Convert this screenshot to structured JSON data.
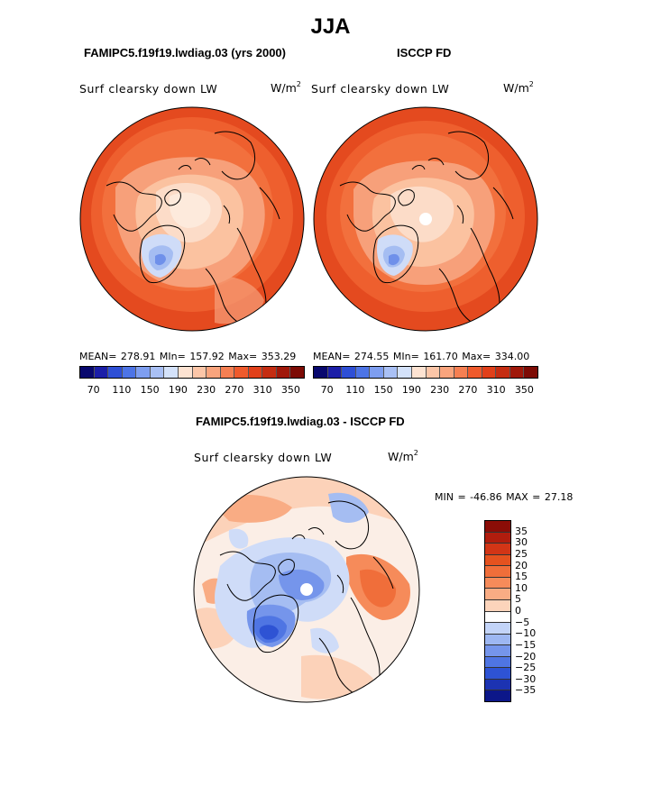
{
  "title": "JJA",
  "panel_left": {
    "title": "FAMIPC5.f19f19.lwdiag.03 (yrs 2000)",
    "variable": "Surf clearsky down LW",
    "units": "W/m",
    "units_exp": "2",
    "stats": "MEAN= 278.91   MIn= 157.92   Max= 353.29"
  },
  "panel_right": {
    "title": "ISCCP FD",
    "variable": "Surf clearsky down LW",
    "units": "W/m",
    "units_exp": "2",
    "stats": "MEAN= 274.55   MIn= 161.70   Max= 334.00"
  },
  "panel_diff": {
    "title": "FAMIPC5.f19f19.lwdiag.03 - ISCCP FD",
    "variable": "Surf clearsky down LW",
    "units": "W/m",
    "units_exp": "2",
    "minmax": "MIN = -46.86 MAX =   27.18"
  },
  "abs_colorbar": {
    "ticks": [
      "70",
      "110",
      "150",
      "190",
      "230",
      "270",
      "310",
      "350"
    ],
    "colors": [
      "#08086e",
      "#1b1ea8",
      "#2e4fd6",
      "#4d74e6",
      "#7e9ef0",
      "#a9c0f5",
      "#d4e2fa",
      "#fde3d2",
      "#fcc6a8",
      "#f9a47d",
      "#f57f52",
      "#ef5a2c",
      "#e1401a",
      "#c52d12",
      "#a0180a",
      "#7d0b05"
    ]
  },
  "diff_colorbar": {
    "labels": [
      "35",
      "30",
      "25",
      "20",
      "15",
      "10",
      "5",
      "0",
      "−5",
      "−10",
      "−15",
      "−20",
      "−25",
      "−30",
      "−35"
    ],
    "colors": [
      "#8b0d07",
      "#b11d0e",
      "#d23516",
      "#e5521f",
      "#f06e3a",
      "#f68b5a",
      "#f9ac84",
      "#fcd4bb",
      "#ffffff",
      "#c3d4f8",
      "#9db7f2",
      "#7595eb",
      "#4f75e3",
      "#2e53d4",
      "#1c33b2",
      "#0c1789"
    ]
  },
  "map_colors": {
    "warm_deep": "#e44a1f",
    "warm_mid": "#f2703d",
    "warm_light": "#f7a07a",
    "warm_pale": "#fcd2b9",
    "neutral": "#fbeee6",
    "cool_pale": "#cfdcf8",
    "cool_light": "#a5bdf2",
    "cool_mid": "#6f90ea",
    "cool_deep": "#3557d4"
  }
}
